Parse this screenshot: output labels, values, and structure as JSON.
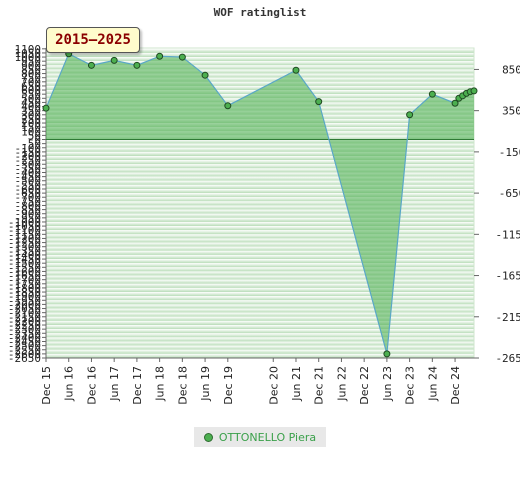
{
  "page": {
    "title": "WOF ratinglist",
    "badge": "2015–2025"
  },
  "legend": {
    "label": "OTTONELLO Piera",
    "color": "#4caf50"
  },
  "chart_data": {
    "type": "area",
    "title": "WOF ratinglist",
    "xlabel": "",
    "ylabel": "",
    "ylim": [
      -2650,
      1110
    ],
    "grid": true,
    "legend_placement": "bottom-center",
    "x_tick_labels": [
      "Dec 15",
      "Jun 16",
      "Dec 16",
      "Jun 17",
      "Dec 17",
      "Jun 18",
      "Dec 18",
      "Jun 19",
      "Dec 19",
      "Dec 20",
      "Jun 21",
      "Dec 21",
      "Jun 22",
      "Dec 22",
      "Jun 23",
      "Dec 23",
      "Jun 24",
      "Dec 24"
    ],
    "left_y_ticks": [
      1100,
      1050,
      1000,
      950,
      900,
      850,
      800,
      750,
      700,
      650,
      600,
      550,
      500,
      450,
      400,
      350,
      300,
      250,
      200,
      150,
      100,
      50,
      0,
      -50,
      -100,
      -150,
      -200,
      -250,
      -300,
      -350,
      -400,
      -450,
      -500,
      -550,
      -600,
      -650,
      -700,
      -750,
      -800,
      -850,
      -900,
      -950,
      -1000,
      -1050,
      -1100,
      -1150,
      -1200,
      -1250,
      -1300,
      -1350,
      -1400,
      -1450,
      -1500,
      -1550,
      -1600,
      -1650,
      -1700,
      -1750,
      -1800,
      -1850,
      -1900,
      -1950,
      -2000,
      -2050,
      -2100,
      -2150,
      -2200,
      -2250,
      -2300,
      -2350,
      -2400,
      -2450,
      -2500,
      -2550,
      -2600,
      -2650
    ],
    "right_y_ticks": [
      850,
      350,
      -150,
      -650,
      -1150,
      -1650,
      -2150,
      -2650
    ],
    "series": [
      {
        "name": "OTTONELLO Piera",
        "color": "#4caf50",
        "points": [
          {
            "x": "2015-12",
            "y": 380
          },
          {
            "x": "2016-06",
            "y": 1040
          },
          {
            "x": "2016-12",
            "y": 900
          },
          {
            "x": "2017-06",
            "y": 960
          },
          {
            "x": "2017-12",
            "y": 900
          },
          {
            "x": "2018-06",
            "y": 1010
          },
          {
            "x": "2018-12",
            "y": 1000
          },
          {
            "x": "2019-06",
            "y": 780
          },
          {
            "x": "2019-12",
            "y": 410
          },
          {
            "x": "2021-06",
            "y": 840
          },
          {
            "x": "2021-12",
            "y": 460
          },
          {
            "x": "2023-06",
            "y": -2600
          },
          {
            "x": "2023-12",
            "y": 300
          },
          {
            "x": "2024-06",
            "y": 550
          },
          {
            "x": "2024-12",
            "y": 440
          },
          {
            "x": "2025-01",
            "y": 500
          },
          {
            "x": "2025-02",
            "y": 530
          },
          {
            "x": "2025-03",
            "y": 560
          },
          {
            "x": "2025-04",
            "y": 580
          },
          {
            "x": "2025-05",
            "y": 590
          }
        ]
      }
    ]
  }
}
